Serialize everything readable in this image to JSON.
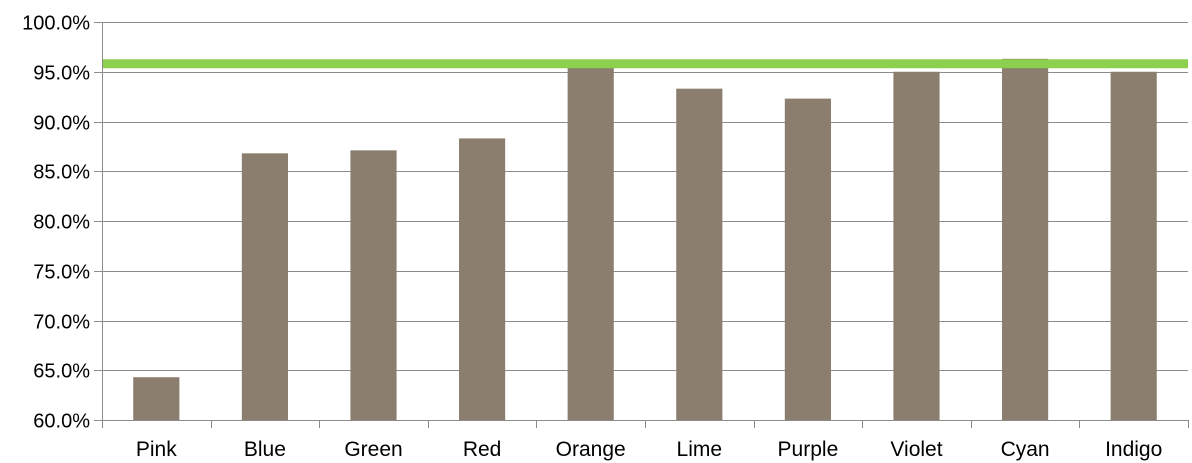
{
  "chart_data": {
    "type": "bar",
    "categories": [
      "Pink",
      "Blue",
      "Green",
      "Red",
      "Orange",
      "Lime",
      "Purple",
      "Violet",
      "Cyan",
      "Indigo"
    ],
    "values": [
      64.3,
      86.8,
      87.1,
      88.3,
      95.8,
      93.3,
      92.3,
      95.0,
      96.3,
      95.0
    ],
    "ylim": [
      60,
      100
    ],
    "yticks": [
      "60.0%",
      "65.0%",
      "70.0%",
      "75.0%",
      "80.0%",
      "85.0%",
      "90.0%",
      "95.0%",
      "100.0%"
    ],
    "target_line": 95.8,
    "grid": true,
    "title": "",
    "xlabel": "",
    "ylabel": "",
    "colors": {
      "bar": "#8b7e6e",
      "target": "#8dcf4e",
      "grid": "#8c8c8c",
      "axis": "#8c8c8c"
    }
  }
}
